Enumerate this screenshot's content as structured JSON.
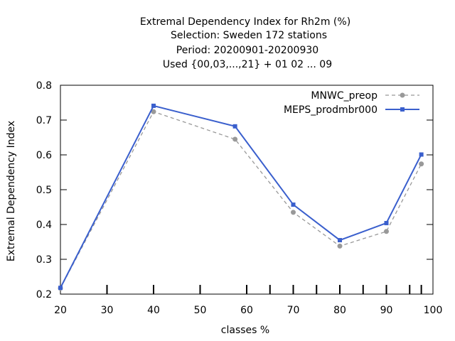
{
  "chart_data": {
    "type": "line",
    "title_lines": [
      "Extremal Dependency Index  for Rh2m (%)",
      "Selection: Sweden     172 stations",
      "Period: 20200901-20200930",
      "Used {00,03,...,21} + 01 02 ... 09"
    ],
    "xlabel": "classes %",
    "ylabel": "Extremal Dependency Index",
    "xlim": [
      20,
      100
    ],
    "ylim": [
      0.2,
      0.8
    ],
    "xticks": [
      20,
      30,
      40,
      50,
      60,
      70,
      80,
      90,
      100
    ],
    "yticks": [
      0.2,
      0.3,
      0.4,
      0.5,
      0.6,
      0.7,
      0.8
    ],
    "xtick_labels": [
      "20",
      "30",
      "40",
      "50",
      "60",
      "70",
      "80",
      "90",
      "100"
    ],
    "ytick_labels": [
      "0.2",
      "0.3",
      "0.4",
      "0.5",
      "0.6",
      "0.7",
      "0.8"
    ],
    "minor_xticks": [
      30,
      40,
      50,
      60,
      65,
      70,
      75,
      80,
      85,
      90,
      95,
      97.5
    ],
    "legend_position": "top-right",
    "series": [
      {
        "name": "MNWC_preop",
        "color": "#999999",
        "dashed": true,
        "marker": "circle",
        "x": [
          20,
          40,
          57.5,
          70,
          80,
          90,
          97.5
        ],
        "y": [
          0.217,
          0.724,
          0.645,
          0.435,
          0.338,
          0.38,
          0.574
        ]
      },
      {
        "name": "MEPS_prodmbr000",
        "color": "#3a5fcd",
        "dashed": false,
        "marker": "square",
        "x": [
          20,
          40,
          57.5,
          70,
          80,
          90,
          97.5
        ],
        "y": [
          0.218,
          0.741,
          0.682,
          0.457,
          0.355,
          0.404,
          0.601
        ]
      }
    ]
  }
}
